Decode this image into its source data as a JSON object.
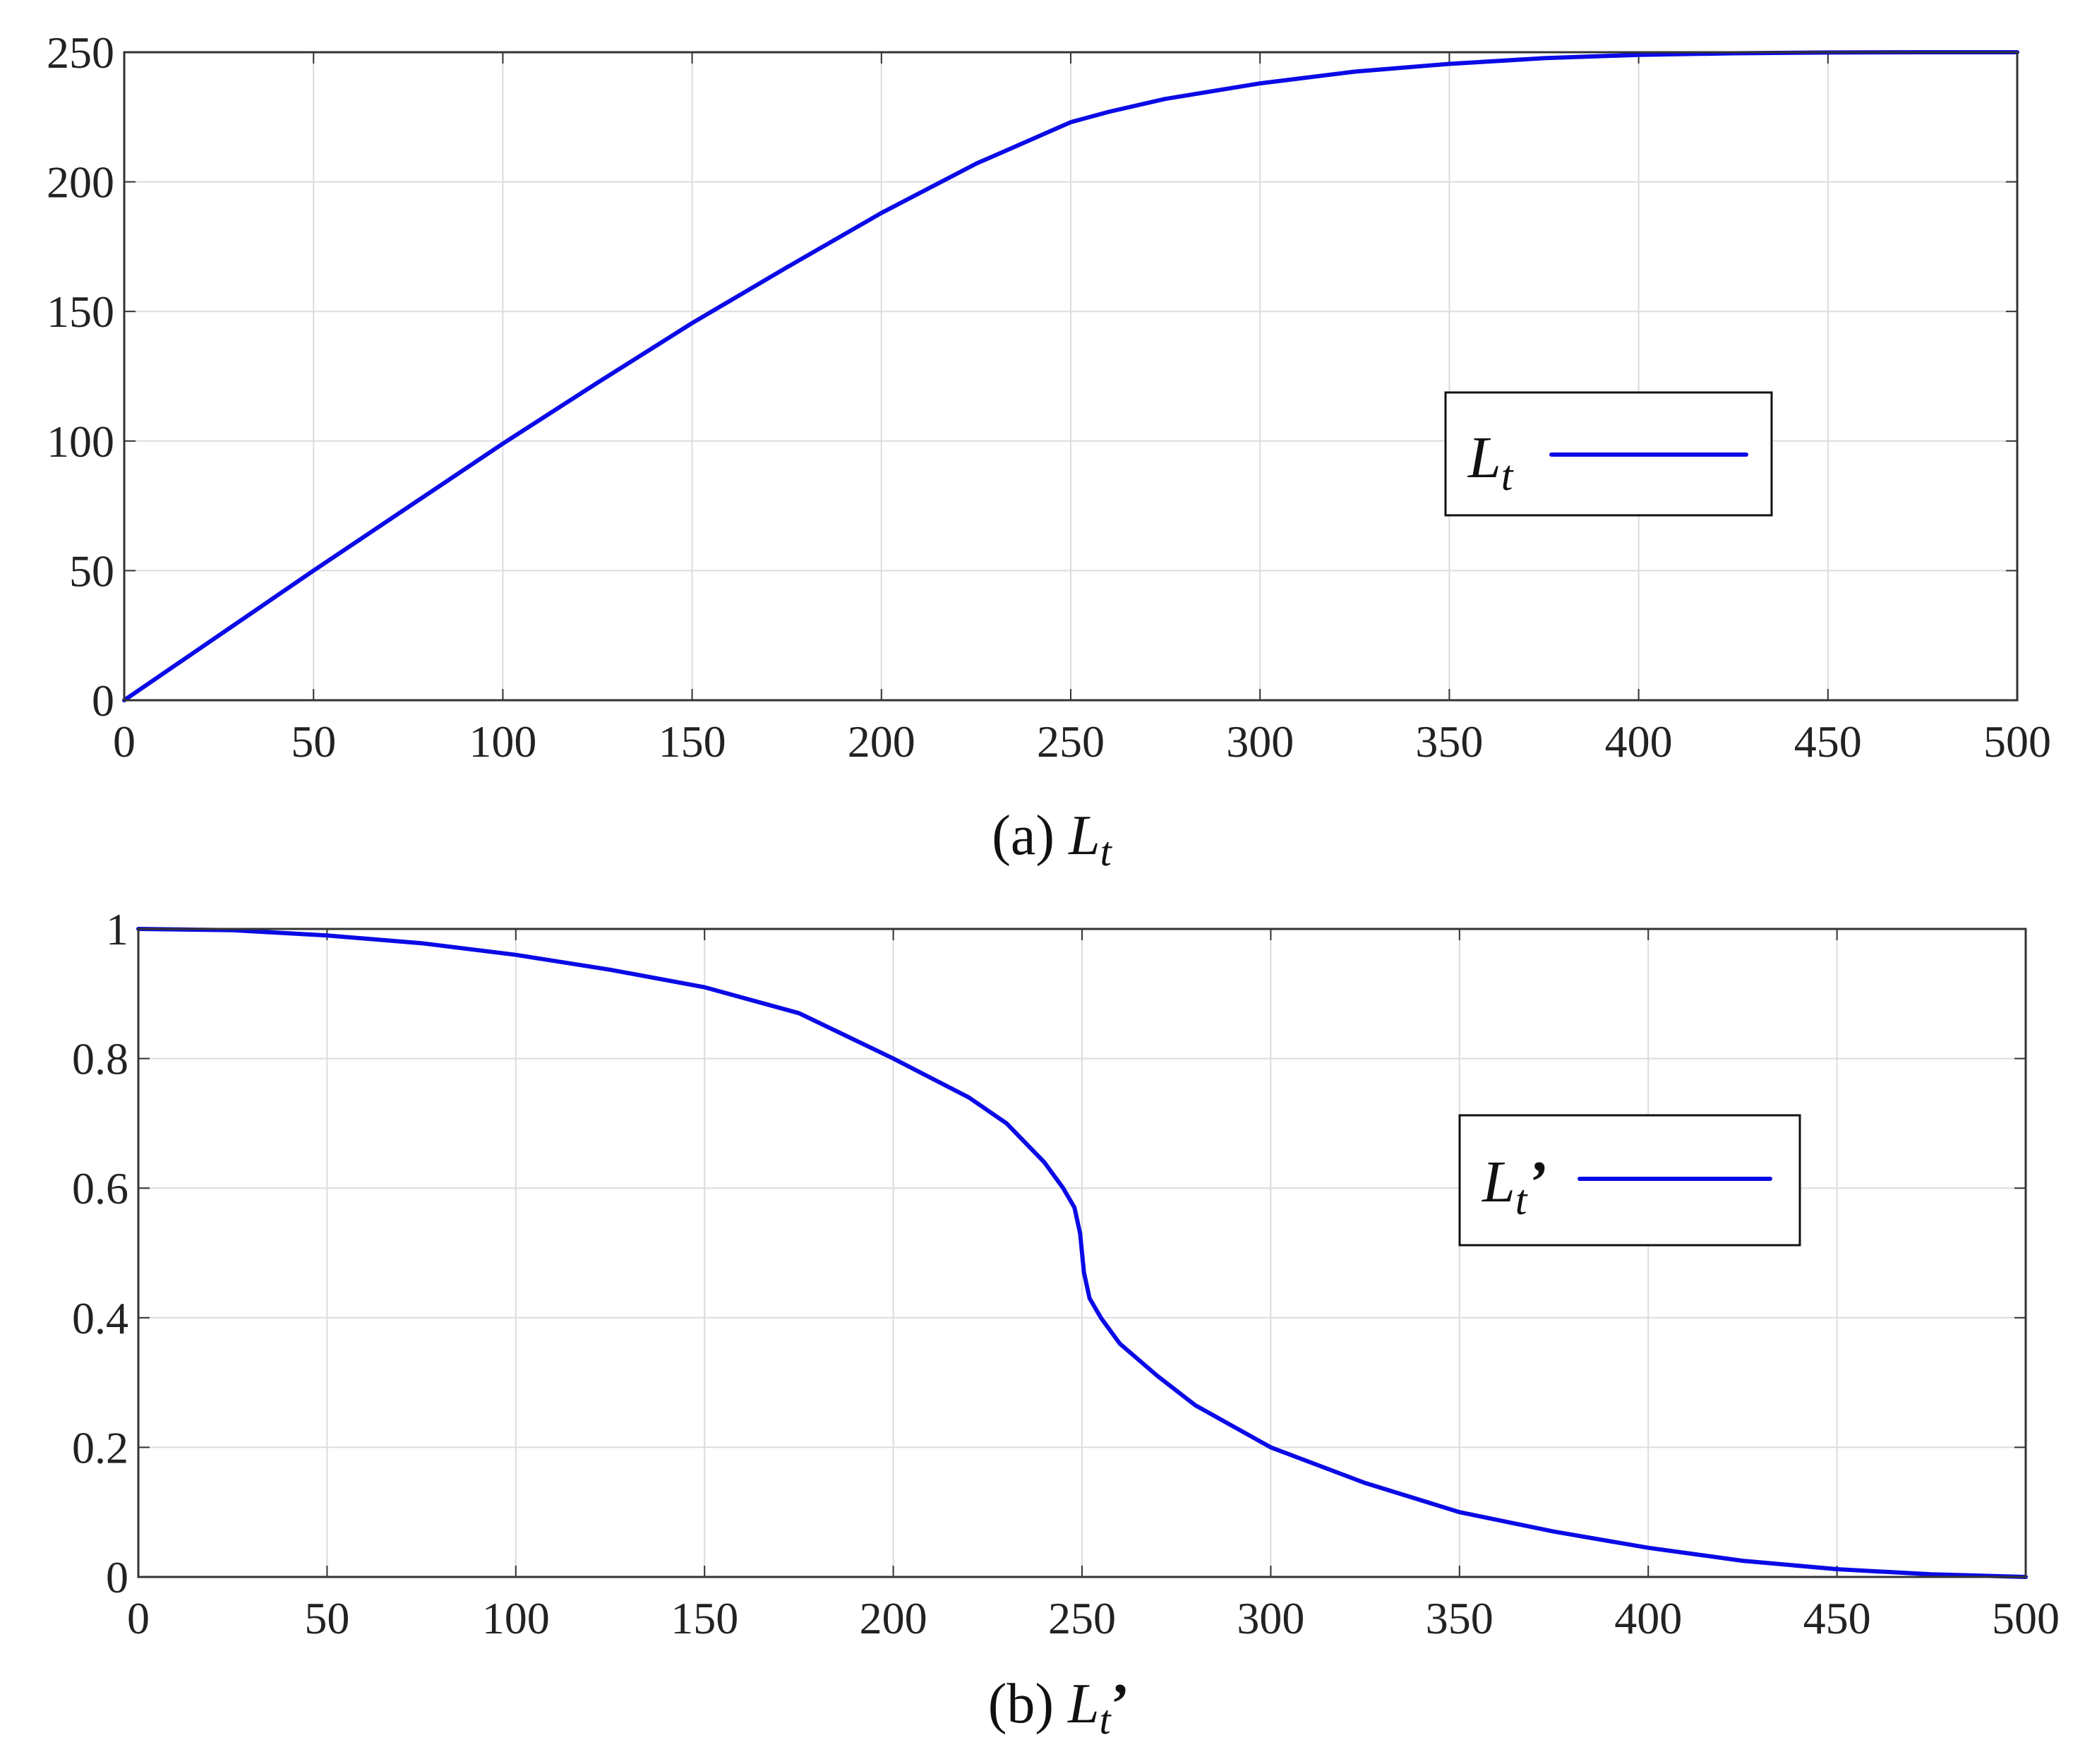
{
  "colors": {
    "line": "#0a0ae6",
    "grid": "#dcdcdc",
    "axis": "#333333"
  },
  "chart_data": [
    {
      "type": "line",
      "caption": {
        "prefix": "(a) ",
        "symbol": "L",
        "subscript": "t",
        "suffix": ""
      },
      "legend": {
        "symbol": "L",
        "subscript": "t",
        "suffix": "",
        "placement": "right"
      },
      "xlim": [
        0,
        500
      ],
      "ylim": [
        0,
        250
      ],
      "xticks": [
        0,
        50,
        100,
        150,
        200,
        250,
        300,
        350,
        400,
        450,
        500
      ],
      "yticks": [
        0,
        50,
        100,
        150,
        200,
        250
      ],
      "grid": true,
      "series": [
        {
          "x": [
            0,
            25,
            50,
            75,
            100,
            125,
            150,
            175,
            200,
            225,
            250,
            260,
            275,
            300,
            325,
            350,
            375,
            400,
            425,
            450,
            475,
            500
          ],
          "y": [
            0,
            25,
            50,
            74.5,
            99,
            122.5,
            145.5,
            167,
            188,
            207,
            223,
            227,
            232,
            238,
            242.5,
            245.5,
            247.7,
            249,
            249.6,
            249.9,
            250,
            250
          ]
        }
      ]
    },
    {
      "type": "line",
      "caption": {
        "prefix": "(b) ",
        "symbol": "L",
        "subscript": "t",
        "suffix": "’"
      },
      "legend": {
        "symbol": "L",
        "subscript": "t",
        "suffix": "’",
        "placement": "right"
      },
      "xlim": [
        0,
        500
      ],
      "ylim": [
        0,
        1
      ],
      "xticks": [
        0,
        50,
        100,
        150,
        200,
        250,
        300,
        350,
        400,
        450,
        500
      ],
      "yticks": [
        0,
        0.2,
        0.4,
        0.6,
        0.8,
        1
      ],
      "ytick_labels": [
        "0",
        "0.2",
        "0.4",
        "0.6",
        "0.8",
        "1"
      ],
      "grid": true,
      "series": [
        {
          "x": [
            0,
            25,
            50,
            75,
            100,
            125,
            150,
            175,
            200,
            220,
            230,
            240,
            245,
            248,
            249.5,
            250,
            250.5,
            252,
            255,
            260,
            270,
            280,
            300,
            325,
            350,
            375,
            400,
            425,
            450,
            475,
            500
          ],
          "y": [
            1,
            0.998,
            0.99,
            0.978,
            0.96,
            0.937,
            0.91,
            0.87,
            0.8,
            0.74,
            0.7,
            0.64,
            0.6,
            0.57,
            0.53,
            0.5,
            0.47,
            0.43,
            0.4,
            0.36,
            0.31,
            0.265,
            0.2,
            0.145,
            0.1,
            0.07,
            0.045,
            0.025,
            0.012,
            0.004,
            0
          ]
        }
      ]
    }
  ]
}
